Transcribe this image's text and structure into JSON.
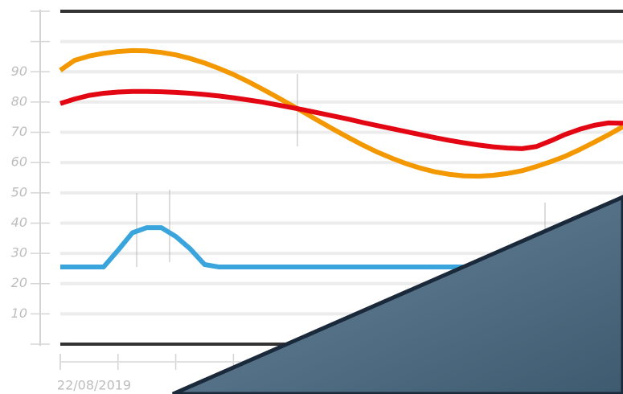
{
  "chart_data": {
    "type": "line",
    "x": [
      0,
      0.25,
      0.5,
      0.75,
      1,
      1.25,
      1.5,
      1.75,
      2,
      2.25,
      2.5,
      2.75,
      3,
      3.25,
      3.5,
      3.75,
      4,
      4.25,
      4.5,
      4.75,
      5,
      5.25,
      5.5,
      5.75,
      6,
      6.25,
      6.5,
      6.75,
      7,
      7.25,
      7.5,
      7.75,
      8,
      8.25,
      8.5,
      8.75,
      9,
      9.25,
      9.5,
      9.75
    ],
    "series": [
      {
        "color": "#f39800",
        "values": [
          90.5,
          93.8,
          95.2,
          96.1,
          96.7,
          97,
          96.9,
          96.4,
          95.6,
          94.4,
          92.9,
          91.1,
          89.1,
          86.8,
          84.3,
          81.7,
          79,
          76.3,
          73.5,
          70.8,
          68.2,
          65.7,
          63.4,
          61.4,
          59.6,
          58.1,
          56.9,
          56.1,
          55.6,
          55.5,
          55.8,
          56.4,
          57.3,
          58.7,
          60.3,
          62.1,
          64.3,
          66.7,
          69.2,
          71.9
        ]
      },
      {
        "color": "#e30613",
        "values": [
          79.5,
          81,
          82.2,
          82.9,
          83.3,
          83.5,
          83.5,
          83.4,
          83.2,
          82.9,
          82.5,
          82,
          81.4,
          80.7,
          80,
          79.1,
          78.2,
          77.3,
          76.3,
          75.3,
          74.3,
          73.2,
          72.2,
          71.2,
          70.2,
          69.2,
          68.2,
          67.3,
          66.5,
          65.8,
          65.2,
          64.8,
          64.6,
          65.3,
          67.2,
          69.3,
          71,
          72.3,
          73.1,
          73
        ]
      },
      {
        "color": "#3aa5dc",
        "values": [
          25.5,
          25.5,
          25.5,
          25.5,
          31,
          36.8,
          38.5,
          38.5,
          35.6,
          31.5,
          26.3,
          25.5,
          25.5,
          25.5,
          25.5,
          25.5,
          25.5,
          25.5,
          25.5,
          25.5,
          25.5,
          25.5,
          25.5,
          25.5,
          25.5,
          25.5,
          25.5,
          25.5,
          25.5,
          25.5,
          25.5,
          25.5,
          25.5,
          25.5,
          25.5,
          25.5,
          25.5,
          25.5,
          25.5,
          25.5
        ]
      }
    ],
    "xlim": [
      0,
      9.75
    ],
    "xticks": [
      {
        "value": 0,
        "label": "22/08/2019"
      }
    ],
    "ylim": [
      0,
      110
    ],
    "yticks": [
      10,
      20,
      30,
      40,
      50,
      60,
      70,
      80,
      90
    ],
    "grid": true
  }
}
